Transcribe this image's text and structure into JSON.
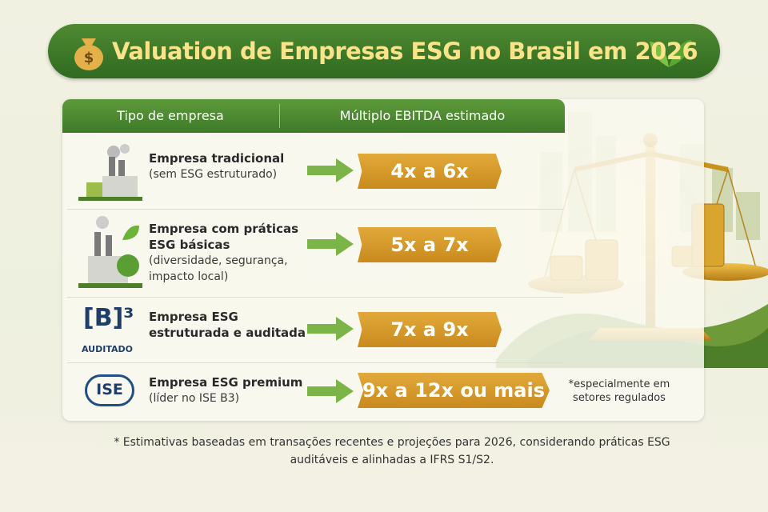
{
  "header": {
    "title": "Valuation de Empresas ESG no Brasil em 2026"
  },
  "table": {
    "columns": [
      "Tipo de empresa",
      "Múltiplo EBITDA estimado"
    ],
    "rows": [
      {
        "name": "Empresa tradicional",
        "detail": "(sem ESG estruturado)",
        "multiple": "4x a 6x"
      },
      {
        "name": "Empresa com práticas ESG básicas",
        "detail": "(diversidade, segurança, impacto local)",
        "multiple": "5x a 7x"
      },
      {
        "name": "Empresa ESG estruturada e auditada",
        "multiple": "7x a 9x",
        "icon_label": "[B]³",
        "icon_caption": "AUDITADO"
      },
      {
        "name": "Empresa ESG premium",
        "detail": "(líder no ISE B3)",
        "multiple": "9x a 12x ou mais",
        "icon_label": "ISE",
        "note": "*especialmente em setores regulados"
      }
    ]
  },
  "footnote": "* Estimativas baseadas em transações recentes e projeções para 2026, considerando práticas ESG auditáveis e alinhadas a IFRS S1/S2."
}
